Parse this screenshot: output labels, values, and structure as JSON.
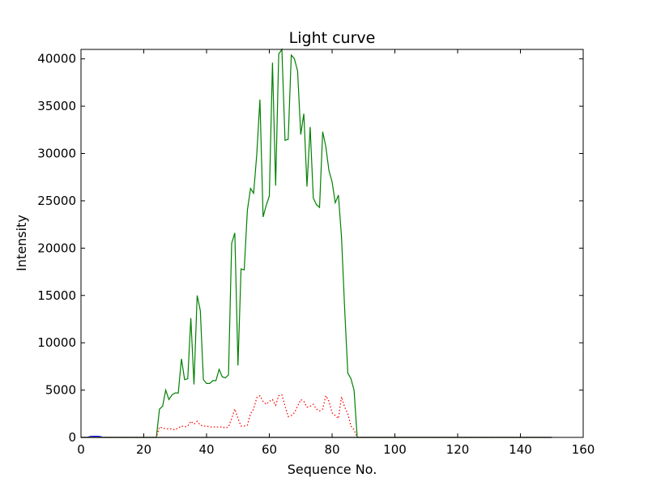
{
  "chart_data": {
    "type": "line",
    "title": "Light curve",
    "xlabel": "Sequence No.",
    "ylabel": "Intensity",
    "xlim": [
      0,
      160
    ],
    "ylim": [
      0,
      41000
    ],
    "xticks": [
      0,
      20,
      40,
      60,
      80,
      100,
      120,
      140,
      160
    ],
    "yticks": [
      0,
      5000,
      10000,
      15000,
      20000,
      25000,
      30000,
      35000,
      40000
    ],
    "grid": false,
    "legend": "none",
    "series": [
      {
        "color": "#008000",
        "style": "solid",
        "x": [
          0,
          1,
          2,
          3,
          4,
          5,
          6,
          7,
          8,
          9,
          10,
          11,
          12,
          13,
          14,
          15,
          16,
          17,
          18,
          19,
          20,
          21,
          22,
          23,
          24,
          25,
          26,
          27,
          28,
          29,
          30,
          31,
          32,
          33,
          34,
          35,
          36,
          37,
          38,
          39,
          40,
          41,
          42,
          43,
          44,
          45,
          46,
          47,
          48,
          49,
          50,
          51,
          52,
          53,
          54,
          55,
          56,
          57,
          58,
          59,
          60,
          61,
          62,
          63,
          64,
          65,
          66,
          67,
          68,
          69,
          70,
          71,
          72,
          73,
          74,
          75,
          76,
          77,
          78,
          79,
          80,
          81,
          82,
          83,
          84,
          85,
          86,
          87,
          88,
          89,
          90,
          95,
          100,
          105,
          110,
          115,
          120,
          125,
          130,
          135,
          140,
          145,
          150
        ],
        "y": [
          0,
          0,
          0,
          0,
          0,
          0,
          0,
          0,
          0,
          0,
          0,
          0,
          0,
          0,
          0,
          0,
          0,
          0,
          0,
          0,
          0,
          0,
          0,
          0,
          0,
          3000,
          3300,
          5000,
          4000,
          4500,
          4700,
          4700,
          8300,
          6100,
          6200,
          12600,
          5600,
          15000,
          13400,
          6100,
          5700,
          5700,
          6000,
          6000,
          7200,
          6400,
          6300,
          6600,
          20500,
          21600,
          7600,
          17800,
          17700,
          24000,
          26300,
          25800,
          29900,
          35700,
          23300,
          24500,
          25500,
          39600,
          26600,
          40500,
          41000,
          31400,
          31500,
          40400,
          40000,
          38700,
          32000,
          34200,
          26500,
          32800,
          25300,
          24600,
          24300,
          32300,
          30700,
          28200,
          27000,
          24800,
          25600,
          21200,
          13600,
          6800,
          6200,
          5000,
          0,
          0,
          0,
          0,
          0,
          0,
          0,
          0,
          0,
          0,
          0,
          0,
          0,
          0,
          0
        ]
      },
      {
        "color": "#ff0000",
        "style": "dotted",
        "x": [
          0,
          5,
          10,
          15,
          20,
          24,
          25,
          26,
          27,
          28,
          29,
          30,
          31,
          32,
          33,
          34,
          35,
          36,
          37,
          38,
          39,
          40,
          41,
          42,
          43,
          44,
          45,
          46,
          47,
          48,
          49,
          50,
          51,
          52,
          53,
          54,
          55,
          56,
          57,
          58,
          59,
          60,
          61,
          62,
          63,
          64,
          65,
          66,
          67,
          68,
          69,
          70,
          71,
          72,
          73,
          74,
          75,
          76,
          77,
          78,
          79,
          80,
          81,
          82,
          83,
          84,
          85,
          86,
          87,
          88,
          90,
          100,
          110,
          120,
          130,
          140,
          150
        ],
        "y": [
          0,
          0,
          0,
          0,
          0,
          0,
          1100,
          1000,
          900,
          900,
          900,
          800,
          1000,
          1200,
          1100,
          1200,
          1700,
          1400,
          1700,
          1300,
          1200,
          1200,
          1100,
          1100,
          1100,
          1100,
          1100,
          1000,
          1100,
          2000,
          3000,
          2000,
          1200,
          1200,
          1300,
          2500,
          3000,
          4200,
          4400,
          3800,
          3500,
          3800,
          4000,
          3400,
          4400,
          4500,
          3300,
          2200,
          2300,
          2600,
          3300,
          4000,
          3800,
          3200,
          3300,
          3500,
          3000,
          2800,
          3000,
          4400,
          3800,
          2600,
          2300,
          2000,
          4300,
          3200,
          2500,
          1200,
          800,
          0,
          0,
          0,
          0,
          0,
          0,
          0,
          0
        ]
      },
      {
        "color": "#0000ff",
        "style": "solid",
        "x": [
          0,
          1,
          2,
          3,
          4,
          5,
          6,
          7,
          8,
          150
        ],
        "y": [
          0,
          0,
          0,
          100,
          120,
          120,
          100,
          0,
          0,
          0
        ]
      },
      {
        "color": "#bfbf00",
        "style": "solid",
        "x": [
          0,
          150
        ],
        "y": [
          0,
          0
        ]
      }
    ]
  }
}
